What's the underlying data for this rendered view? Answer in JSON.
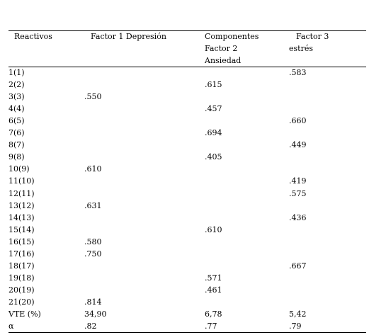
{
  "table": {
    "header": [
      [
        "Reactivos"
      ],
      [
        "Factor 1 Depresión"
      ],
      [
        "Componentes",
        "Factor 2",
        "Ansiedad"
      ],
      [
        "Factor 3",
        "estrés"
      ]
    ],
    "rows": [
      [
        "1(1)",
        null,
        null,
        ".583"
      ],
      [
        "2(2)",
        null,
        ".615",
        null
      ],
      [
        "3(3)",
        ".550",
        null,
        null
      ],
      [
        "4(4)",
        null,
        ".457",
        null
      ],
      [
        "6(5)",
        null,
        null,
        ".660"
      ],
      [
        "7(6)",
        null,
        ".694",
        null
      ],
      [
        "8(7)",
        null,
        null,
        ".449"
      ],
      [
        "9(8)",
        null,
        ".405",
        null
      ],
      [
        "10(9)",
        ".610",
        null,
        null
      ],
      [
        "11(10)",
        null,
        null,
        ".419"
      ],
      [
        "12(11)",
        null,
        null,
        ".575"
      ],
      [
        "13(12)",
        ".631",
        null,
        null
      ],
      [
        "14(13)",
        null,
        null,
        ".436"
      ],
      [
        "15(14)",
        null,
        ".610",
        null
      ],
      [
        "16(15)",
        ".580",
        null,
        null
      ],
      [
        "17(16)",
        ".750",
        null,
        null
      ],
      [
        "18(17)",
        null,
        null,
        ".667"
      ],
      [
        "19(18)",
        null,
        ".571",
        null
      ],
      [
        "20(19)",
        null,
        ".461",
        null
      ],
      [
        "21(20)",
        ".814",
        null,
        null
      ],
      [
        "VTE (%)",
        "34,90",
        "6,78",
        "5,42"
      ],
      [
        "α",
        ".82",
        ".77",
        ".79"
      ]
    ]
  }
}
